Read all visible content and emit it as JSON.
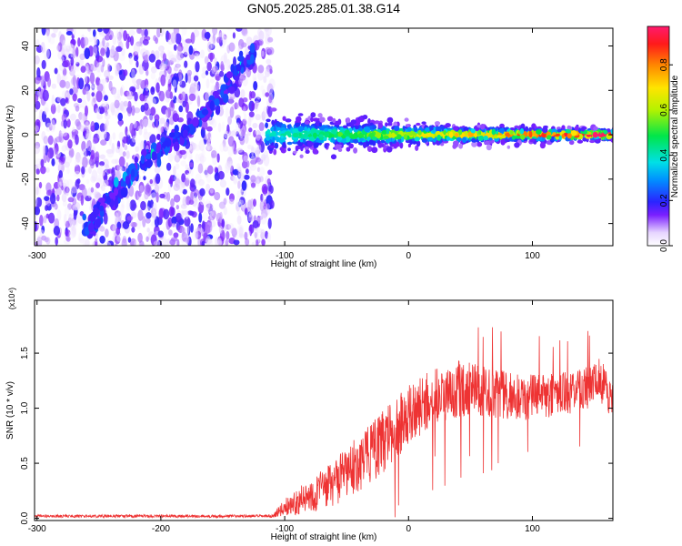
{
  "title": "GN05.2025.285.01.38.G14",
  "chart_data": [
    {
      "type": "heatmap",
      "xlabel": "Height of straight line (km)",
      "ylabel": "Frequency (Hz)",
      "xlim": [
        -302,
        165
      ],
      "ylim": [
        -50,
        48
      ],
      "xticks": [
        -300,
        -200,
        -100,
        0,
        100
      ],
      "xtick_labels": [
        "-300",
        "-200",
        "-100",
        "0",
        "100"
      ],
      "yticks": [
        -40,
        -20,
        0,
        20,
        40
      ],
      "ytick_labels": [
        "-40",
        "-20",
        "0",
        "20",
        "40"
      ],
      "colorbar": {
        "label": "Normalized spectral amplitude",
        "range": [
          0,
          0.97
        ],
        "ticks": [
          0.0,
          0.2,
          0.4,
          0.6,
          0.8
        ],
        "tick_labels": [
          "0.0",
          "0.2",
          "0.4",
          "0.6",
          "0.8"
        ]
      },
      "features": {
        "noise_region_x": [
          -302,
          -110
        ],
        "diagonal_track": [
          [
            -262,
            -44
          ],
          [
            -215,
            -12
          ],
          [
            -175,
            3
          ],
          [
            -135,
            30
          ],
          [
            -125,
            36
          ]
        ],
        "carrier_track": [
          [
            -112,
            0
          ],
          [
            -80,
            0
          ],
          [
            -40,
            0
          ],
          [
            0,
            0
          ],
          [
            50,
            0
          ],
          [
            100,
            0
          ],
          [
            165,
            0
          ]
        ]
      }
    },
    {
      "type": "line",
      "xlabel": "Height of straight line (km)",
      "ylabel": "SNR (10 * v/v)",
      "y_multiplier_label": "(x10⁴)",
      "xlim": [
        -302,
        165
      ],
      "ylim": [
        -0.02,
        1.98
      ],
      "xticks": [
        -300,
        -200,
        -100,
        0,
        100
      ],
      "xtick_labels": [
        "-300",
        "-200",
        "-100",
        "0",
        "100"
      ],
      "yticks": [
        0.0,
        0.5,
        1.0,
        1.5
      ],
      "ytick_labels": [
        "0.0",
        "0.5",
        "1.0",
        "1.5"
      ],
      "series": [
        {
          "color": "#ee3333",
          "envelope_x": [
            -302,
            -110,
            -100,
            -80,
            -60,
            -40,
            -20,
            0,
            20,
            40,
            60,
            80,
            100,
            120,
            140,
            155,
            165
          ],
          "envelope_mean": [
            0.02,
            0.02,
            0.1,
            0.2,
            0.32,
            0.5,
            0.7,
            0.92,
            1.1,
            1.18,
            1.16,
            1.12,
            1.1,
            1.12,
            1.16,
            1.25,
            1.05
          ],
          "envelope_spread": [
            0.01,
            0.01,
            0.06,
            0.12,
            0.16,
            0.2,
            0.22,
            0.22,
            0.2,
            0.2,
            0.18,
            0.17,
            0.16,
            0.15,
            0.15,
            0.16,
            0.12
          ]
        }
      ]
    }
  ]
}
